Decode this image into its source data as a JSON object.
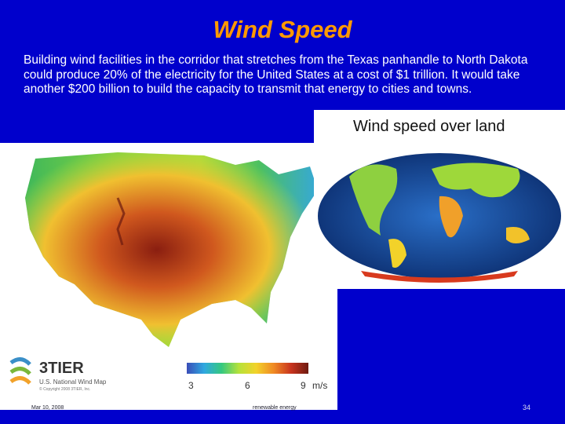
{
  "slide": {
    "title": "Wind Speed",
    "body": "Building wind facilities in the corridor that stretches from the Texas panhandle to North Dakota could produce 20% of the electricity for the United States at a cost of $1 trillion. It would take another $200 billion to build the capacity to transmit that energy to cities and towns."
  },
  "world_map": {
    "title": "Wind speed over land"
  },
  "us_map": {
    "logo_name": "3TIER",
    "logo_subtitle": "U.S. National Wind Map",
    "logo_copyright": "© Copyright 2008 3TIER, Inc.",
    "scale_ticks": [
      "3",
      "6",
      "9"
    ],
    "scale_unit": "m/s"
  },
  "footer": {
    "left": "Mar 10, 2008",
    "center": "renewable energy",
    "page": "34"
  }
}
